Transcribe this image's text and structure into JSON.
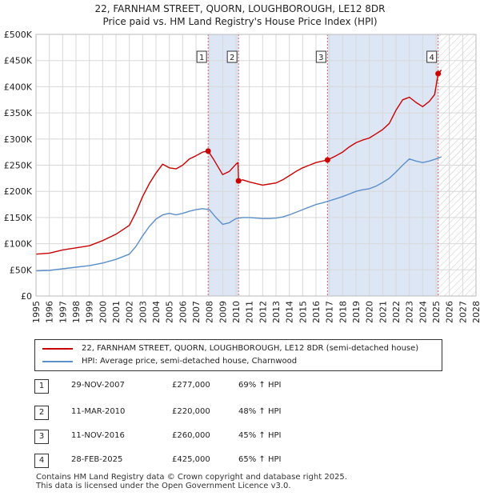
{
  "title_line1": "22, FARNHAM STREET, QUORN, LOUGHBOROUGH, LE12 8DR",
  "title_line2": "Price paid vs. HM Land Registry's House Price Index (HPI)",
  "legend": {
    "property_label": "22, FARNHAM STREET, QUORN, LOUGHBOROUGH, LE12 8DR (semi-detached house)",
    "hpi_label": "HPI: Average price, semi-detached house, Charnwood"
  },
  "sales": [
    {
      "num": "1",
      "date": "29-NOV-2007",
      "price": "£277,000",
      "hpi": "69% ↑ HPI"
    },
    {
      "num": "2",
      "date": "11-MAR-2010",
      "price": "£220,000",
      "hpi": "48% ↑ HPI"
    },
    {
      "num": "3",
      "date": "11-NOV-2016",
      "price": "£260,000",
      "hpi": "45% ↑ HPI"
    },
    {
      "num": "4",
      "date": "28-FEB-2025",
      "price": "£425,000",
      "hpi": "65% ↑ HPI"
    }
  ],
  "footer": {
    "line1": "Contains HM Land Registry data © Crown copyright and database right 2025.",
    "line2": "This data is licensed under the Open Government Licence v3.0."
  },
  "colors": {
    "property": "#cc0000",
    "hpi": "#5b8fcb",
    "band": "#dde6f5",
    "grid": "#d8d8d8",
    "marker_line": "#cc0000"
  },
  "chart_data": {
    "type": "line",
    "title": "Price paid vs. HM Land Registry's House Price Index (HPI)",
    "xlabel": "",
    "ylabel": "",
    "xlim": [
      1995,
      2028
    ],
    "ylim": [
      0,
      500000
    ],
    "x_ticks": [
      1995,
      1996,
      1997,
      1998,
      1999,
      2000,
      2001,
      2002,
      2003,
      2004,
      2005,
      2006,
      2007,
      2008,
      2009,
      2010,
      2011,
      2012,
      2013,
      2014,
      2015,
      2016,
      2017,
      2018,
      2019,
      2020,
      2021,
      2022,
      2023,
      2024,
      2025,
      2026,
      2027,
      2028
    ],
    "y_ticks": [
      0,
      50000,
      100000,
      150000,
      200000,
      250000,
      300000,
      350000,
      400000,
      450000,
      500000
    ],
    "y_tick_labels": [
      "£0",
      "£50K",
      "£100K",
      "£150K",
      "£200K",
      "£250K",
      "£300K",
      "£350K",
      "£400K",
      "£450K",
      "£500K"
    ],
    "shaded_ranges": [
      [
        2007.91,
        2010.19
      ],
      [
        2016.86,
        2025.16
      ]
    ],
    "hatched_from": 2025.16,
    "sale_markers": [
      {
        "label": "1",
        "x": 2007.91,
        "y": 277000
      },
      {
        "label": "2",
        "x": 2010.19,
        "y": 220000
      },
      {
        "label": "3",
        "x": 2016.86,
        "y": 260000
      },
      {
        "label": "4",
        "x": 2025.16,
        "y": 425000
      }
    ],
    "series": [
      {
        "name": "22, FARNHAM STREET, QUORN, LOUGHBOROUGH, LE12 8DR (semi-detached house)",
        "x": [
          1995,
          1996,
          1997,
          1998,
          1999,
          2000,
          2001,
          2002,
          2002.5,
          2003,
          2003.5,
          2004,
          2004.5,
          2005,
          2005.5,
          2006,
          2006.5,
          2007,
          2007.5,
          2007.91,
          2008.3,
          2008.7,
          2009,
          2009.5,
          2010,
          2010.15,
          2010.19,
          2010.5,
          2011,
          2011.5,
          2012,
          2012.5,
          2013,
          2013.5,
          2014,
          2014.5,
          2015,
          2015.5,
          2016,
          2016.5,
          2016.86,
          2017.5,
          2018,
          2018.5,
          2019,
          2019.5,
          2020,
          2020.5,
          2021,
          2021.5,
          2022,
          2022.5,
          2023,
          2023.5,
          2024,
          2024.5,
          2024.9,
          2025.16,
          2025.4
        ],
        "values": [
          80000,
          82000,
          88000,
          92000,
          96000,
          106000,
          118000,
          135000,
          160000,
          190000,
          215000,
          235000,
          252000,
          245000,
          243000,
          250000,
          262000,
          268000,
          275000,
          277000,
          262000,
          245000,
          232000,
          238000,
          252000,
          255000,
          220000,
          222000,
          218000,
          215000,
          212000,
          214000,
          216000,
          222000,
          230000,
          238000,
          245000,
          250000,
          255000,
          258000,
          260000,
          268000,
          275000,
          285000,
          293000,
          298000,
          302000,
          310000,
          318000,
          330000,
          355000,
          375000,
          380000,
          370000,
          362000,
          372000,
          385000,
          425000,
          432000
        ]
      },
      {
        "name": "HPI: Average price, semi-detached house, Charnwood",
        "x": [
          1995,
          1996,
          1997,
          1998,
          1999,
          2000,
          2001,
          2002,
          2002.5,
          2003,
          2003.5,
          2004,
          2004.5,
          2005,
          2005.5,
          2006,
          2006.5,
          2007,
          2007.5,
          2008,
          2008.5,
          2009,
          2009.5,
          2010,
          2010.5,
          2011,
          2011.5,
          2012,
          2012.5,
          2013,
          2013.5,
          2014,
          2014.5,
          2015,
          2015.5,
          2016,
          2016.5,
          2017,
          2017.5,
          2018,
          2018.5,
          2019,
          2019.5,
          2020,
          2020.5,
          2021,
          2021.5,
          2022,
          2022.5,
          2023,
          2023.5,
          2024,
          2024.5,
          2025,
          2025.4
        ],
        "values": [
          48000,
          49000,
          52000,
          55000,
          58000,
          63000,
          70000,
          80000,
          95000,
          115000,
          133000,
          147000,
          155000,
          158000,
          155000,
          158000,
          162000,
          165000,
          167000,
          165000,
          150000,
          137000,
          140000,
          148000,
          150000,
          150000,
          149000,
          148000,
          148000,
          149000,
          151000,
          155000,
          160000,
          165000,
          170000,
          175000,
          178000,
          182000,
          186000,
          190000,
          195000,
          200000,
          203000,
          205000,
          210000,
          217000,
          225000,
          237000,
          250000,
          262000,
          258000,
          255000,
          258000,
          262000,
          266000
        ]
      }
    ]
  }
}
